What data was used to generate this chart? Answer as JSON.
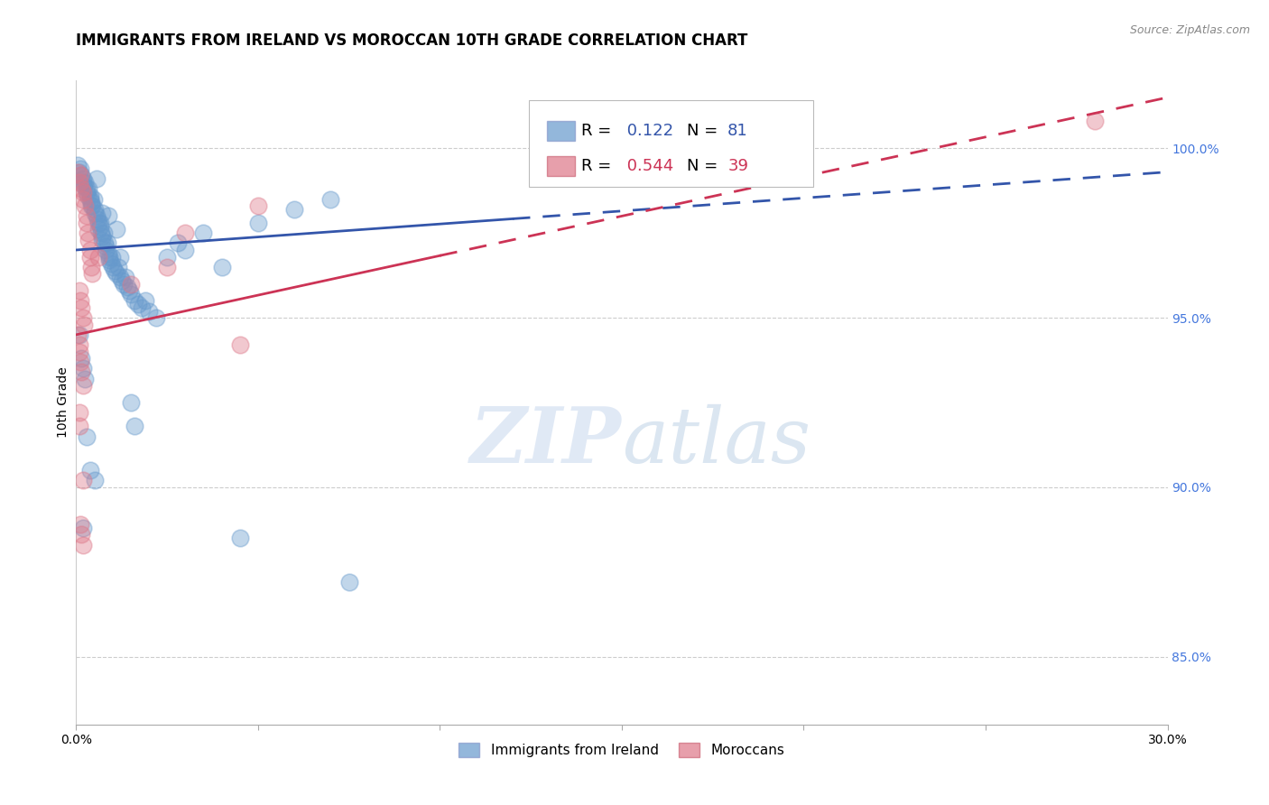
{
  "title": "IMMIGRANTS FROM IRELAND VS MOROCCAN 10TH GRADE CORRELATION CHART",
  "source": "Source: ZipAtlas.com",
  "ylabel": "10th Grade",
  "xlim": [
    0.0,
    30.0
  ],
  "ylim": [
    83.0,
    102.0
  ],
  "xticks": [
    0,
    5,
    10,
    15,
    20,
    25,
    30
  ],
  "xticklabels": [
    "0.0%",
    "",
    "",
    "",
    "",
    "",
    "30.0%"
  ],
  "yticks_right": [
    85.0,
    90.0,
    95.0,
    100.0
  ],
  "yticklabels_right": [
    "85.0%",
    "90.0%",
    "95.0%",
    "100.0%"
  ],
  "grid_color": "#cccccc",
  "background_color": "#ffffff",
  "watermark_zip": "ZIP",
  "watermark_atlas": "atlas",
  "blue_color": "#6699cc",
  "pink_color": "#dd7788",
  "blue_line_color": "#3355aa",
  "pink_line_color": "#cc3355",
  "legend_label_blue": "Immigrants from Ireland",
  "legend_label_pink": "Moroccans",
  "blue_scatter": [
    [
      0.05,
      99.5
    ],
    [
      0.08,
      99.3
    ],
    [
      0.12,
      99.4
    ],
    [
      0.15,
      99.2
    ],
    [
      0.18,
      99.0
    ],
    [
      0.2,
      99.1
    ],
    [
      0.22,
      98.9
    ],
    [
      0.25,
      99.0
    ],
    [
      0.28,
      98.8
    ],
    [
      0.3,
      98.7
    ],
    [
      0.32,
      98.6
    ],
    [
      0.35,
      98.8
    ],
    [
      0.38,
      98.5
    ],
    [
      0.4,
      98.6
    ],
    [
      0.42,
      98.4
    ],
    [
      0.45,
      98.3
    ],
    [
      0.48,
      98.5
    ],
    [
      0.5,
      98.2
    ],
    [
      0.52,
      98.1
    ],
    [
      0.55,
      98.0
    ],
    [
      0.58,
      97.9
    ],
    [
      0.6,
      97.8
    ],
    [
      0.62,
      97.6
    ],
    [
      0.65,
      97.7
    ],
    [
      0.68,
      97.5
    ],
    [
      0.7,
      97.4
    ],
    [
      0.72,
      97.3
    ],
    [
      0.75,
      97.5
    ],
    [
      0.78,
      97.2
    ],
    [
      0.8,
      97.1
    ],
    [
      0.82,
      97.0
    ],
    [
      0.85,
      97.2
    ],
    [
      0.88,
      96.9
    ],
    [
      0.9,
      96.8
    ],
    [
      0.92,
      96.7
    ],
    [
      0.95,
      96.6
    ],
    [
      0.98,
      96.8
    ],
    [
      1.0,
      96.5
    ],
    [
      1.05,
      96.4
    ],
    [
      1.1,
      96.3
    ],
    [
      1.15,
      96.5
    ],
    [
      1.2,
      96.2
    ],
    [
      1.25,
      96.1
    ],
    [
      1.3,
      96.0
    ],
    [
      1.35,
      96.2
    ],
    [
      1.4,
      95.9
    ],
    [
      1.45,
      95.8
    ],
    [
      1.5,
      95.7
    ],
    [
      1.6,
      95.5
    ],
    [
      1.7,
      95.4
    ],
    [
      1.8,
      95.3
    ],
    [
      1.9,
      95.5
    ],
    [
      2.0,
      95.2
    ],
    [
      2.2,
      95.0
    ],
    [
      2.5,
      96.8
    ],
    [
      3.0,
      97.0
    ],
    [
      3.5,
      97.5
    ],
    [
      4.0,
      96.5
    ],
    [
      5.0,
      97.8
    ],
    [
      6.0,
      98.2
    ],
    [
      7.0,
      98.5
    ],
    [
      0.1,
      94.5
    ],
    [
      0.15,
      93.8
    ],
    [
      0.2,
      93.5
    ],
    [
      0.25,
      93.2
    ],
    [
      1.5,
      92.5
    ],
    [
      1.6,
      91.8
    ],
    [
      0.3,
      91.5
    ],
    [
      0.4,
      90.5
    ],
    [
      0.5,
      90.2
    ],
    [
      7.5,
      87.2
    ],
    [
      4.5,
      88.5
    ],
    [
      0.18,
      88.8
    ],
    [
      2.8,
      97.2
    ],
    [
      1.2,
      96.8
    ],
    [
      0.65,
      97.8
    ],
    [
      0.88,
      98.0
    ],
    [
      1.1,
      97.6
    ],
    [
      0.42,
      98.3
    ],
    [
      0.72,
      98.1
    ],
    [
      0.55,
      99.1
    ]
  ],
  "pink_scatter": [
    [
      0.05,
      99.3
    ],
    [
      0.08,
      99.0
    ],
    [
      0.12,
      99.2
    ],
    [
      0.15,
      98.8
    ],
    [
      0.18,
      98.7
    ],
    [
      0.2,
      98.5
    ],
    [
      0.25,
      98.3
    ],
    [
      0.28,
      98.0
    ],
    [
      0.3,
      97.8
    ],
    [
      0.32,
      97.5
    ],
    [
      0.35,
      97.3
    ],
    [
      0.38,
      97.0
    ],
    [
      0.4,
      96.8
    ],
    [
      0.42,
      96.5
    ],
    [
      0.45,
      96.3
    ],
    [
      0.1,
      95.8
    ],
    [
      0.12,
      95.5
    ],
    [
      0.15,
      95.3
    ],
    [
      0.18,
      95.0
    ],
    [
      0.22,
      94.8
    ],
    [
      0.05,
      94.5
    ],
    [
      0.08,
      94.2
    ],
    [
      0.1,
      94.0
    ],
    [
      0.12,
      93.7
    ],
    [
      0.15,
      93.4
    ],
    [
      0.18,
      93.0
    ],
    [
      3.0,
      97.5
    ],
    [
      5.0,
      98.3
    ],
    [
      2.5,
      96.5
    ],
    [
      0.12,
      88.9
    ],
    [
      0.15,
      88.6
    ],
    [
      0.18,
      88.3
    ],
    [
      0.08,
      92.2
    ],
    [
      0.1,
      91.8
    ],
    [
      4.5,
      94.2
    ],
    [
      1.5,
      96.0
    ],
    [
      28.0,
      100.8
    ],
    [
      0.6,
      96.8
    ],
    [
      0.2,
      90.2
    ]
  ],
  "blue_trend": [
    0.0,
    30.0,
    97.0,
    99.3
  ],
  "pink_trend": [
    0.0,
    30.0,
    94.5,
    101.5
  ],
  "blue_solid_end": 12.0,
  "pink_solid_end": 10.0,
  "title_fontsize": 12,
  "tick_fontsize": 10,
  "legend_fontsize": 13,
  "right_tick_color": "#4477dd"
}
